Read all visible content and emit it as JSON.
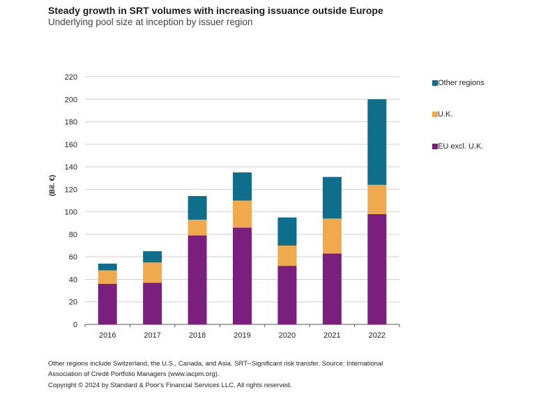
{
  "chart_data": {
    "type": "bar",
    "stacked": true,
    "title": "Steady growth in SRT volumes with increasing issuance outside Europe",
    "subtitle": "Underlying pool size at inception by issuer region",
    "ylabel": "(Bil. €)",
    "xlabel": "",
    "ylim": [
      0,
      220
    ],
    "yticks": [
      0,
      20,
      40,
      60,
      80,
      100,
      120,
      140,
      160,
      180,
      200,
      220
    ],
    "grid": true,
    "legend_position": "right",
    "categories": [
      "2016",
      "2017",
      "2018",
      "2019",
      "2020",
      "2021",
      "2022"
    ],
    "series": [
      {
        "name": "EU excl. U.K.",
        "color": "#7a1f7d",
        "values": [
          36,
          37,
          79,
          86,
          52,
          63,
          98
        ]
      },
      {
        "name": "U.K.",
        "color": "#f0a94c",
        "values": [
          12,
          18,
          14,
          24,
          18,
          31,
          26
        ]
      },
      {
        "name": "Other regions",
        "color": "#0f6e8c",
        "values": [
          6,
          10,
          21,
          25,
          25,
          37,
          76
        ]
      }
    ]
  },
  "legend": [
    {
      "label": "Other regions",
      "color": "#0f6e8c"
    },
    {
      "label": "U.K.",
      "color": "#f0a94c"
    },
    {
      "label": "EU excl. U.K.",
      "color": "#7a1f7d"
    }
  ],
  "footnotes": {
    "line1": "Other regions include Switzerland, the U.S., Canada, and Asia. SRT--Significant risk transfer. Source: International",
    "line2": "Association of Credit Portfolio Managers (www.iacpm.org).",
    "copyright": "Copyright © 2024 by Standard & Poor's Financial Services LLC. All rights reserved."
  }
}
